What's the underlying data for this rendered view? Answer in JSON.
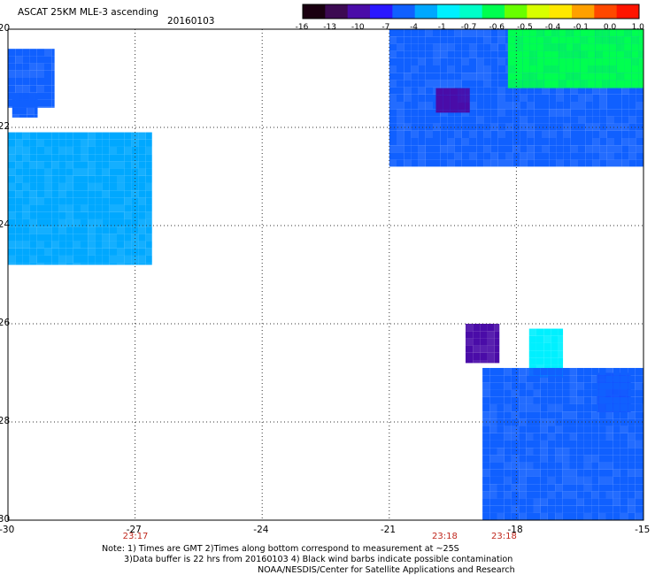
{
  "header": {
    "title": "ASCAT 25KM MLE-3 ascending",
    "date": "20160103"
  },
  "colorbar": {
    "labels": [
      "-16",
      "-13",
      "-10",
      "-7",
      "-4",
      "-1",
      "-0.7",
      "-0.6",
      "-0.5",
      "-0.4",
      "-0.1",
      "0.0",
      "1.0"
    ],
    "colors": [
      "#1a0010",
      "#3c0a52",
      "#4a0ca8",
      "#2a18ff",
      "#1060ff",
      "#00a8ff",
      "#00f0ff",
      "#00ffc8",
      "#00ff50",
      "#68ff00",
      "#d8ff00",
      "#ffe800",
      "#ffa000",
      "#ff4800",
      "#ff1400"
    ]
  },
  "map": {
    "x_ticks": [
      "-30",
      "-27",
      "-24",
      "-21",
      "-18",
      "-15"
    ],
    "y_ticks": [
      "-20",
      "-22",
      "-24",
      "-26",
      "-28",
      "-30"
    ],
    "lon_range": [
      -30,
      -15
    ],
    "lat_range": [
      -20,
      -30
    ],
    "times": [
      {
        "label": "23:17",
        "lon": -27
      },
      {
        "label": "23:18",
        "lon": -19.7
      },
      {
        "label": "23:18",
        "lon": -18.3
      }
    ],
    "swaths": [
      {
        "id": "nw-1",
        "lon": [
          -30,
          -28.9
        ],
        "lat": [
          -20.4,
          -21.6
        ],
        "color": "#1060ff"
      },
      {
        "id": "nw-2",
        "lon": [
          -29.9,
          -29.3
        ],
        "lat": [
          -21.3,
          -21.8
        ],
        "color": "#1060ff"
      },
      {
        "id": "w-band",
        "lon": [
          -30,
          -26.6
        ],
        "lat": [
          -22.1,
          -24.8
        ],
        "color": "#00a8ff"
      },
      {
        "id": "ne-band",
        "lon": [
          -21,
          -15
        ],
        "lat": [
          -20,
          -22.8
        ],
        "color": "#1060ff"
      },
      {
        "id": "ne-green",
        "lon": [
          -18.2,
          -15
        ],
        "lat": [
          -20,
          -21.2
        ],
        "color": "#00ff50"
      },
      {
        "id": "purple-1",
        "lon": [
          -19.9,
          -19.1
        ],
        "lat": [
          -21.2,
          -21.7
        ],
        "color": "#4a0ca8"
      },
      {
        "id": "purple-2",
        "lon": [
          -19.2,
          -18.4
        ],
        "lat": [
          -26,
          -26.8
        ],
        "color": "#4a0ca8"
      },
      {
        "id": "cyan-box",
        "lon": [
          -17.7,
          -16.9
        ],
        "lat": [
          -26.1,
          -27.1
        ],
        "color": "#00f0ff"
      },
      {
        "id": "blue-box",
        "lon": [
          -16.1,
          -15.3
        ],
        "lat": [
          -27.0,
          -27.8
        ],
        "color": "#2a18ff"
      },
      {
        "id": "se-band",
        "lon": [
          -18.8,
          -15
        ],
        "lat": [
          -26.9,
          -30
        ],
        "color": "#1060ff"
      }
    ]
  },
  "note": {
    "line1": "Note: 1) Times are GMT 2)Times along bottom correspond to measurement at ~25S",
    "line2": "3)Data buffer is 22 hrs from 20160103 4) Black wind barbs indicate possible contamination",
    "line3": "NOAA/NESDIS/Center for Satellite Applications and Research"
  }
}
